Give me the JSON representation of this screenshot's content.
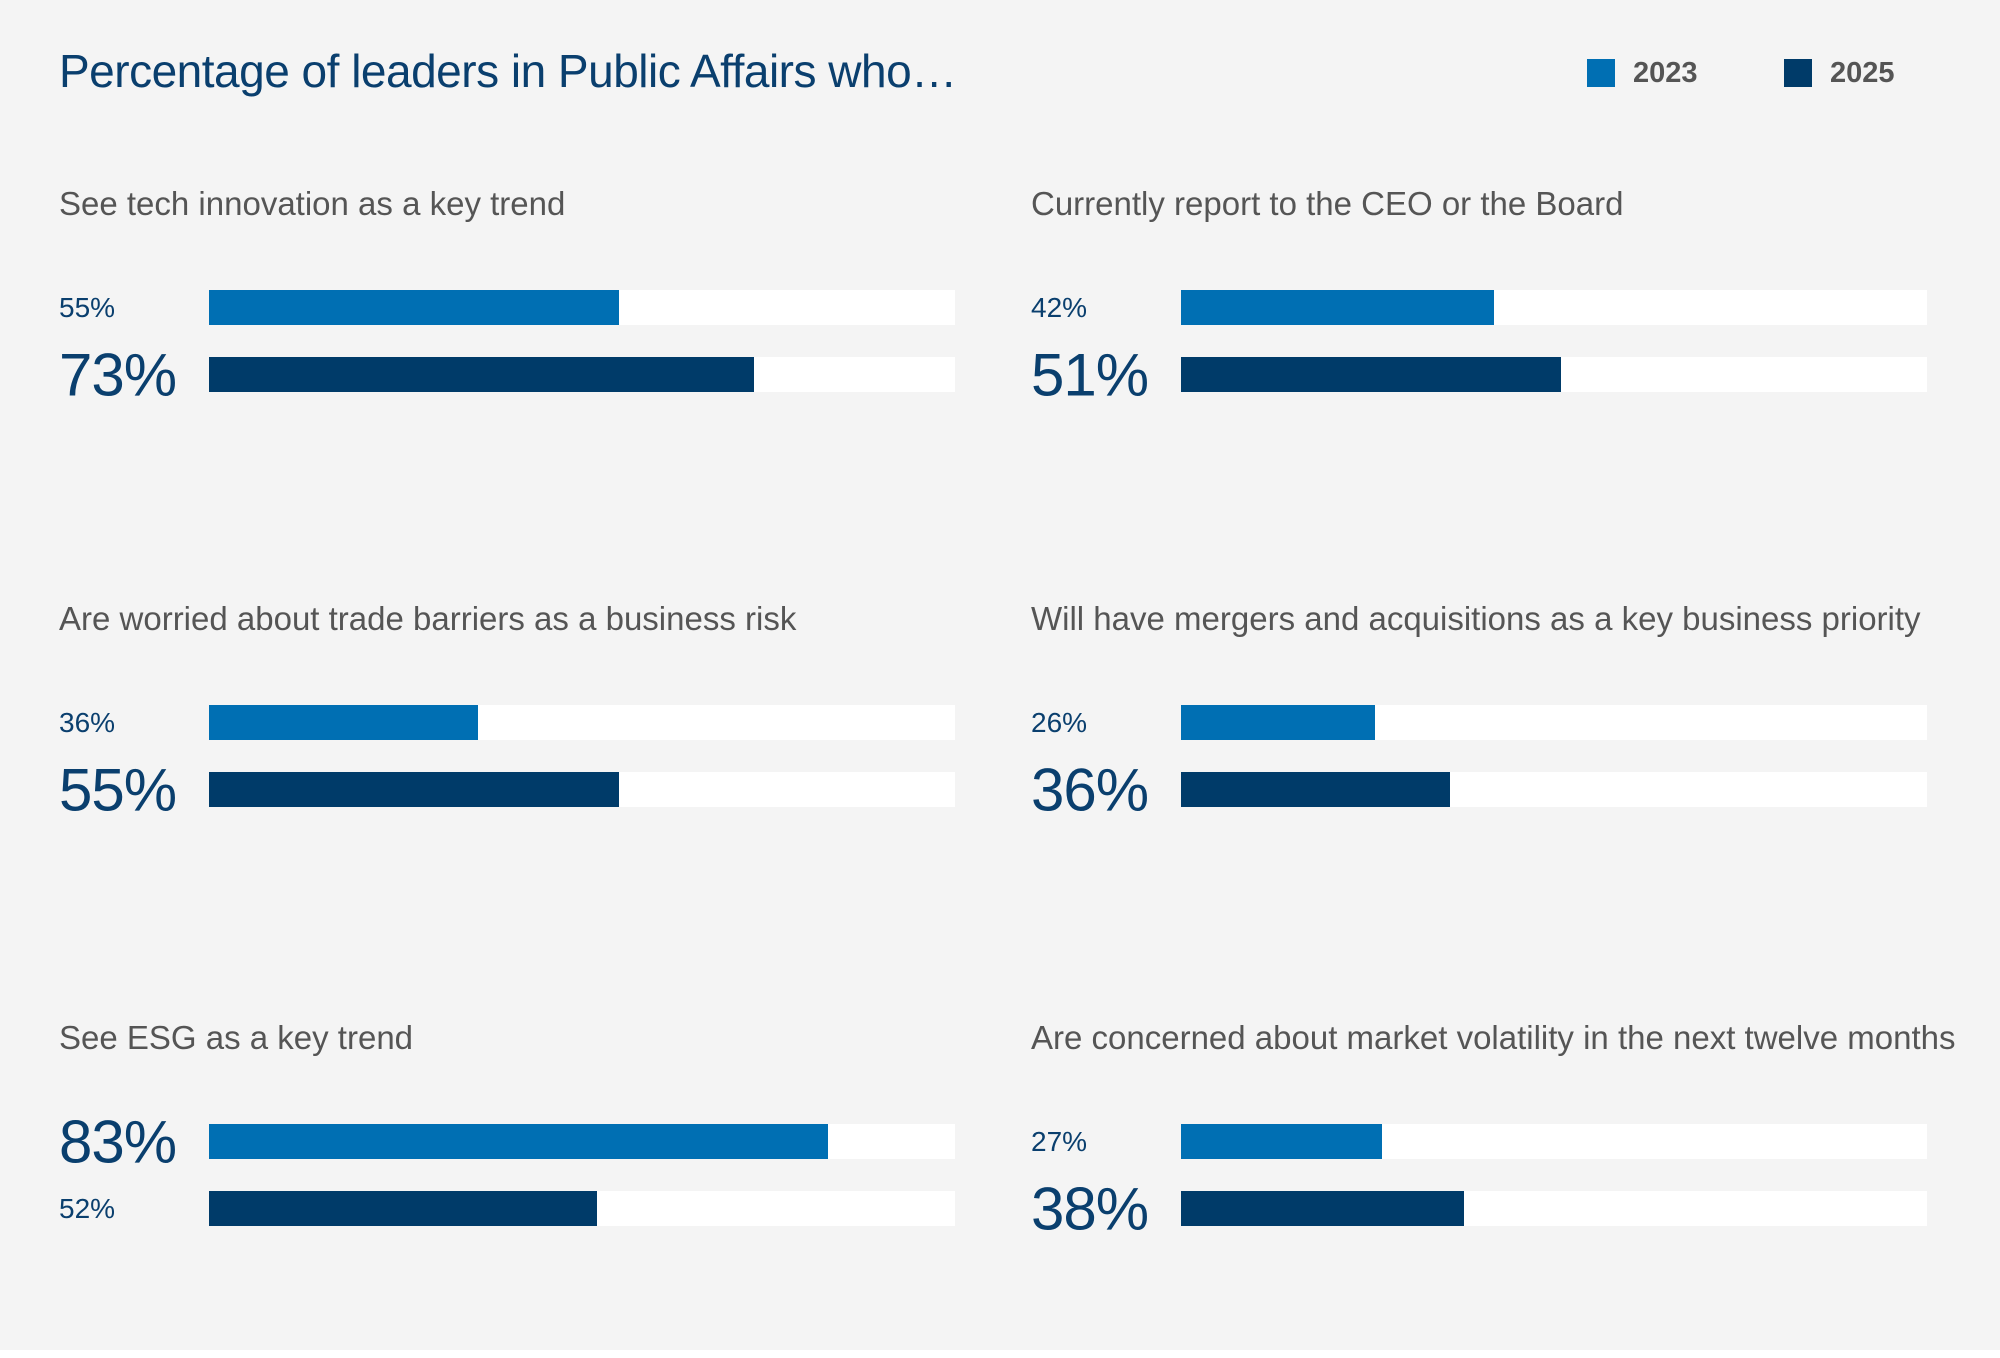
{
  "chart_data": {
    "type": "bar",
    "orientation": "horizontal",
    "title": "Percentage of leaders in Public Affairs who…",
    "xlim": [
      0,
      100
    ],
    "grid": false,
    "legend_position": "top-right",
    "legend": [
      {
        "name": "2023",
        "color": "#006fb3"
      },
      {
        "name": "2025",
        "color": "#003b69"
      }
    ],
    "panels": [
      {
        "label": "See tech innovation as a key trend",
        "bars": [
          {
            "year": "2023",
            "value": 55,
            "text": "55%",
            "emphasis": false
          },
          {
            "year": "2025",
            "value": 73,
            "text": "73%",
            "emphasis": true
          }
        ]
      },
      {
        "label": "Currently report to the CEO or the Board",
        "bars": [
          {
            "year": "2023",
            "value": 42,
            "text": "42%",
            "emphasis": false
          },
          {
            "year": "2025",
            "value": 51,
            "text": "51%",
            "emphasis": true
          }
        ]
      },
      {
        "label": "Are worried about trade barriers as a business risk",
        "bars": [
          {
            "year": "2023",
            "value": 36,
            "text": "36%",
            "emphasis": false
          },
          {
            "year": "2025",
            "value": 55,
            "text": "55%",
            "emphasis": true
          }
        ]
      },
      {
        "label": "Will have mergers and acquisitions as a key business priority",
        "bars": [
          {
            "year": "2023",
            "value": 26,
            "text": "26%",
            "emphasis": false
          },
          {
            "year": "2025",
            "value": 36,
            "text": "36%",
            "emphasis": true
          }
        ]
      },
      {
        "label": "See ESG as a key trend",
        "bars": [
          {
            "year": "2023",
            "value": 83,
            "text": "83%",
            "emphasis": true
          },
          {
            "year": "2025",
            "value": 52,
            "text": "52%",
            "emphasis": false
          }
        ]
      },
      {
        "label": "Are concerned about market volatility in the next twelve months",
        "bars": [
          {
            "year": "2023",
            "value": 27,
            "text": "27%",
            "emphasis": false
          },
          {
            "year": "2025",
            "value": 38,
            "text": "38%",
            "emphasis": true
          }
        ]
      }
    ]
  }
}
